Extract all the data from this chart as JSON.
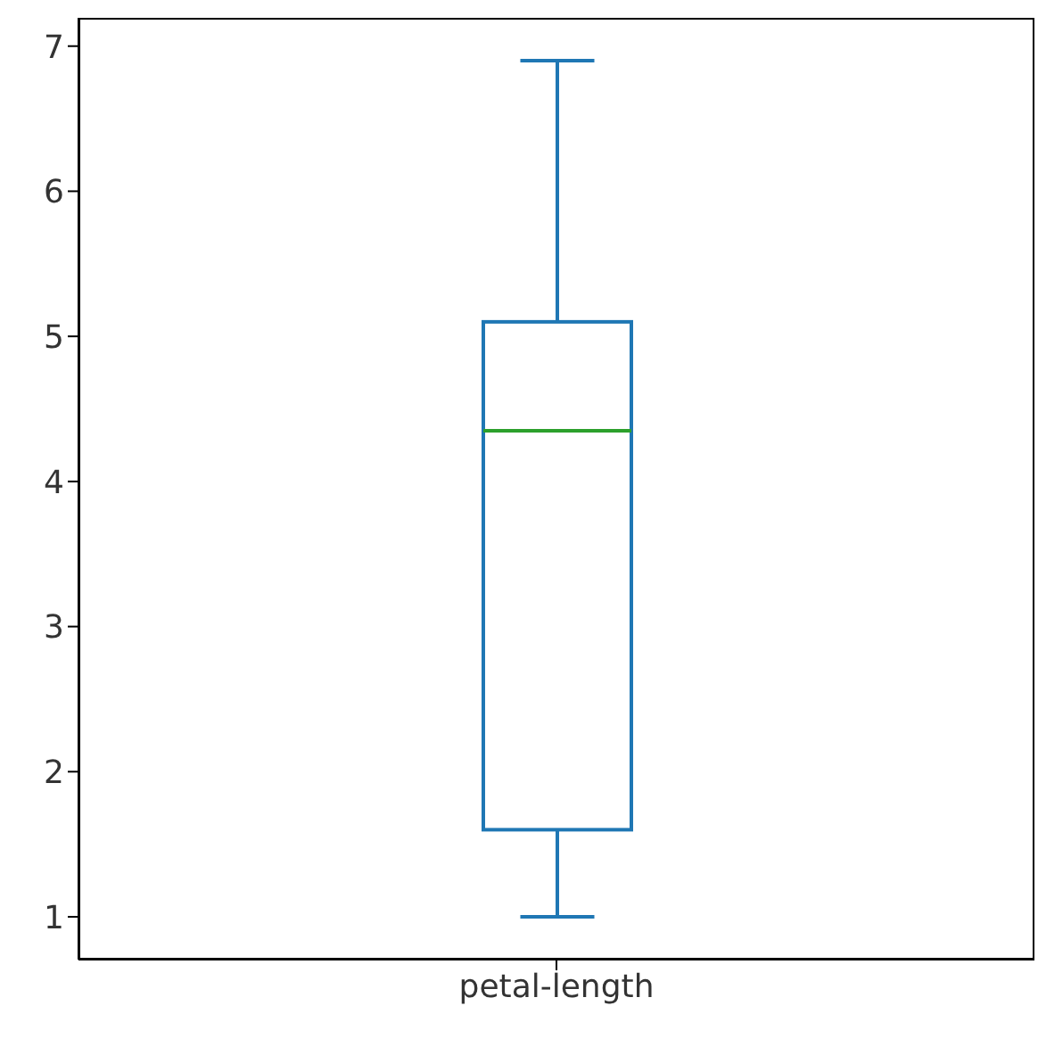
{
  "chart_data": {
    "type": "box",
    "categories": [
      "petal-length"
    ],
    "series": [
      {
        "color": "#1f77b4",
        "boxes": [
          {
            "low": 1.0,
            "q1": 1.6,
            "median": 4.35,
            "q3": 5.1,
            "high": 6.9
          }
        ]
      }
    ],
    "ylim": [
      0.705,
      7.195
    ],
    "yticks": [
      1,
      2,
      3,
      4,
      5,
      6,
      7
    ]
  }
}
